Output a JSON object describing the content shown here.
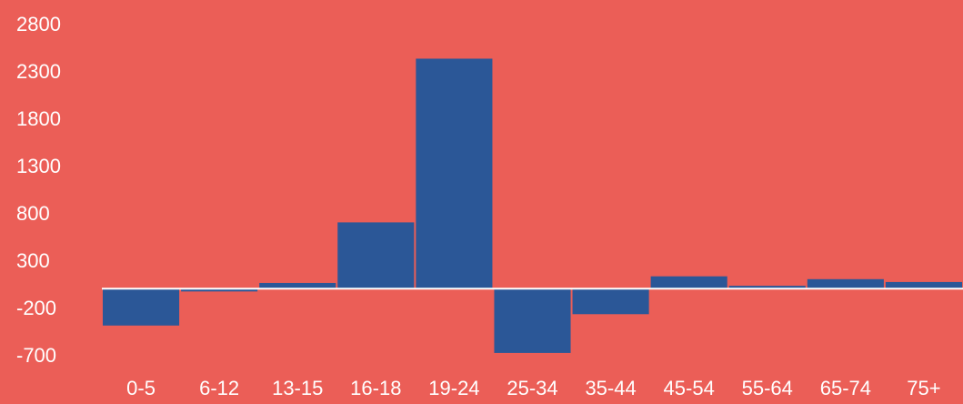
{
  "colors": {
    "background": "#EB5E57",
    "bar": "#2B5797",
    "axis_line": "#FFFFFF",
    "text": "#FFFFFF"
  },
  "chart_data": {
    "type": "bar",
    "categories": [
      "0-5",
      "6-12",
      "13-15",
      "16-18",
      "19-24",
      "25-34",
      "35-44",
      "45-54",
      "55-64",
      "65-74",
      "75+"
    ],
    "values": [
      -390,
      -30,
      60,
      700,
      2430,
      -680,
      -270,
      130,
      30,
      100,
      70
    ],
    "ylim": [
      -700,
      2800
    ],
    "yticks": [
      2800,
      2300,
      1800,
      1300,
      800,
      300,
      -200,
      -700
    ],
    "ytick_labels": [
      "2800",
      "2300",
      "1800",
      "1300",
      "800",
      "300",
      "-200",
      "-700"
    ],
    "grid": false,
    "legend": "none"
  }
}
